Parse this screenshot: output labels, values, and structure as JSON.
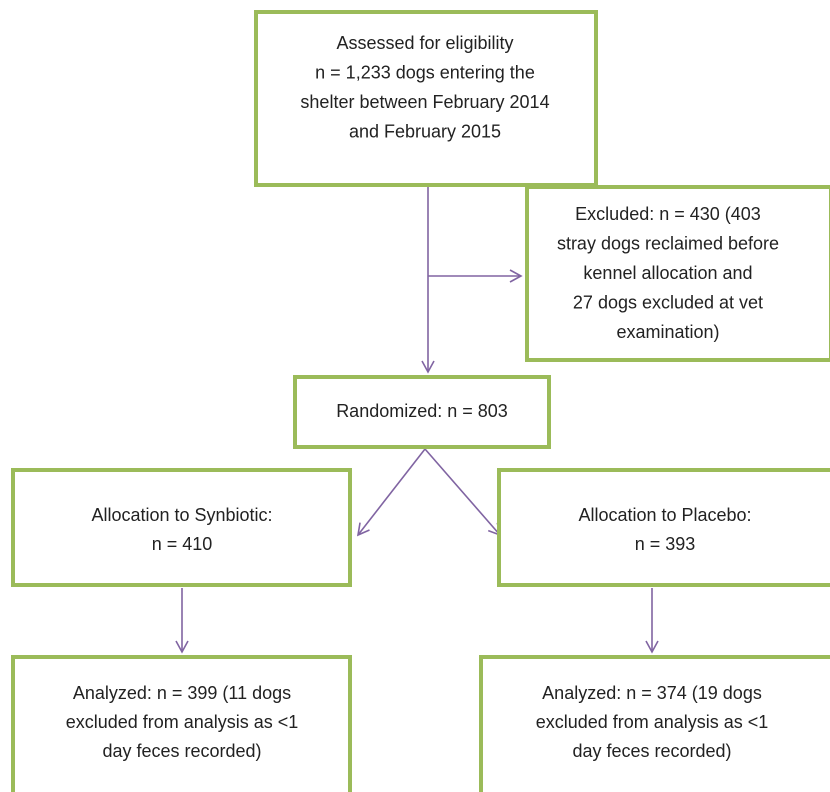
{
  "nodes": [
    {
      "lines": [
        "Assessed for eligibility",
        "n = 1,233 dogs entering the",
        "shelter between February 2014",
        "and February 2015"
      ]
    },
    {
      "lines": [
        "Excluded: n = 430 (403",
        "stray dogs reclaimed before",
        "kennel allocation and",
        "27 dogs excluded at vet",
        "examination)"
      ]
    },
    {
      "lines": [
        "Randomized: n = 803"
      ]
    },
    {
      "lines": [
        "Allocation to Synbiotic:",
        "n = 410"
      ]
    },
    {
      "lines": [
        "Allocation to Placebo:",
        "n = 393"
      ]
    },
    {
      "lines": [
        "Analyzed: n = 399 (11 dogs",
        "excluded from analysis as <1",
        "day feces recorded)"
      ]
    },
    {
      "lines": [
        "Analyzed: n = 374 (19 dogs",
        "excluded from analysis as <1",
        "day feces recorded)"
      ]
    }
  ]
}
